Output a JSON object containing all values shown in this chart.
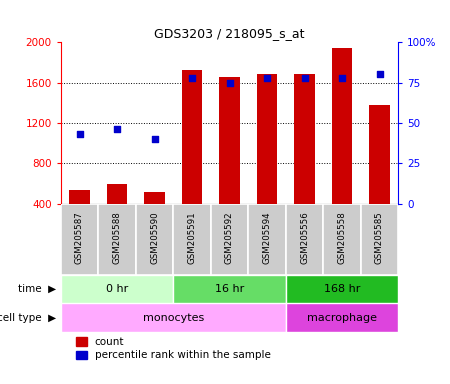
{
  "title": "GDS3203 / 218095_s_at",
  "samples": [
    "GSM205587",
    "GSM205588",
    "GSM205590",
    "GSM205591",
    "GSM205592",
    "GSM205594",
    "GSM205556",
    "GSM205558",
    "GSM205585"
  ],
  "count_values": [
    530,
    590,
    510,
    1720,
    1660,
    1680,
    1680,
    1940,
    1380
  ],
  "percentile_values": [
    43,
    46,
    40,
    78,
    75,
    78,
    78,
    78,
    80
  ],
  "ylim_left": [
    400,
    2000
  ],
  "ylim_right": [
    0,
    100
  ],
  "yticks_left": [
    400,
    800,
    1200,
    1600,
    2000
  ],
  "yticks_right": [
    0,
    25,
    50,
    75,
    100
  ],
  "bar_color": "#cc0000",
  "dot_color": "#0000cc",
  "time_groups": [
    {
      "label": "0 hr",
      "start": 0,
      "end": 3,
      "color": "#ccffcc"
    },
    {
      "label": "16 hr",
      "start": 3,
      "end": 6,
      "color": "#66dd66"
    },
    {
      "label": "168 hr",
      "start": 6,
      "end": 9,
      "color": "#22bb22"
    }
  ],
  "cell_type_groups": [
    {
      "label": "monocytes",
      "start": 0,
      "end": 6,
      "color": "#ffaaff"
    },
    {
      "label": "macrophage",
      "start": 6,
      "end": 9,
      "color": "#dd44dd"
    }
  ],
  "time_row_label": "time",
  "cell_type_row_label": "cell type",
  "legend_count": "count",
  "legend_percentile": "percentile rank within the sample",
  "sample_box_color": "#cccccc",
  "sample_box_edge": "white"
}
